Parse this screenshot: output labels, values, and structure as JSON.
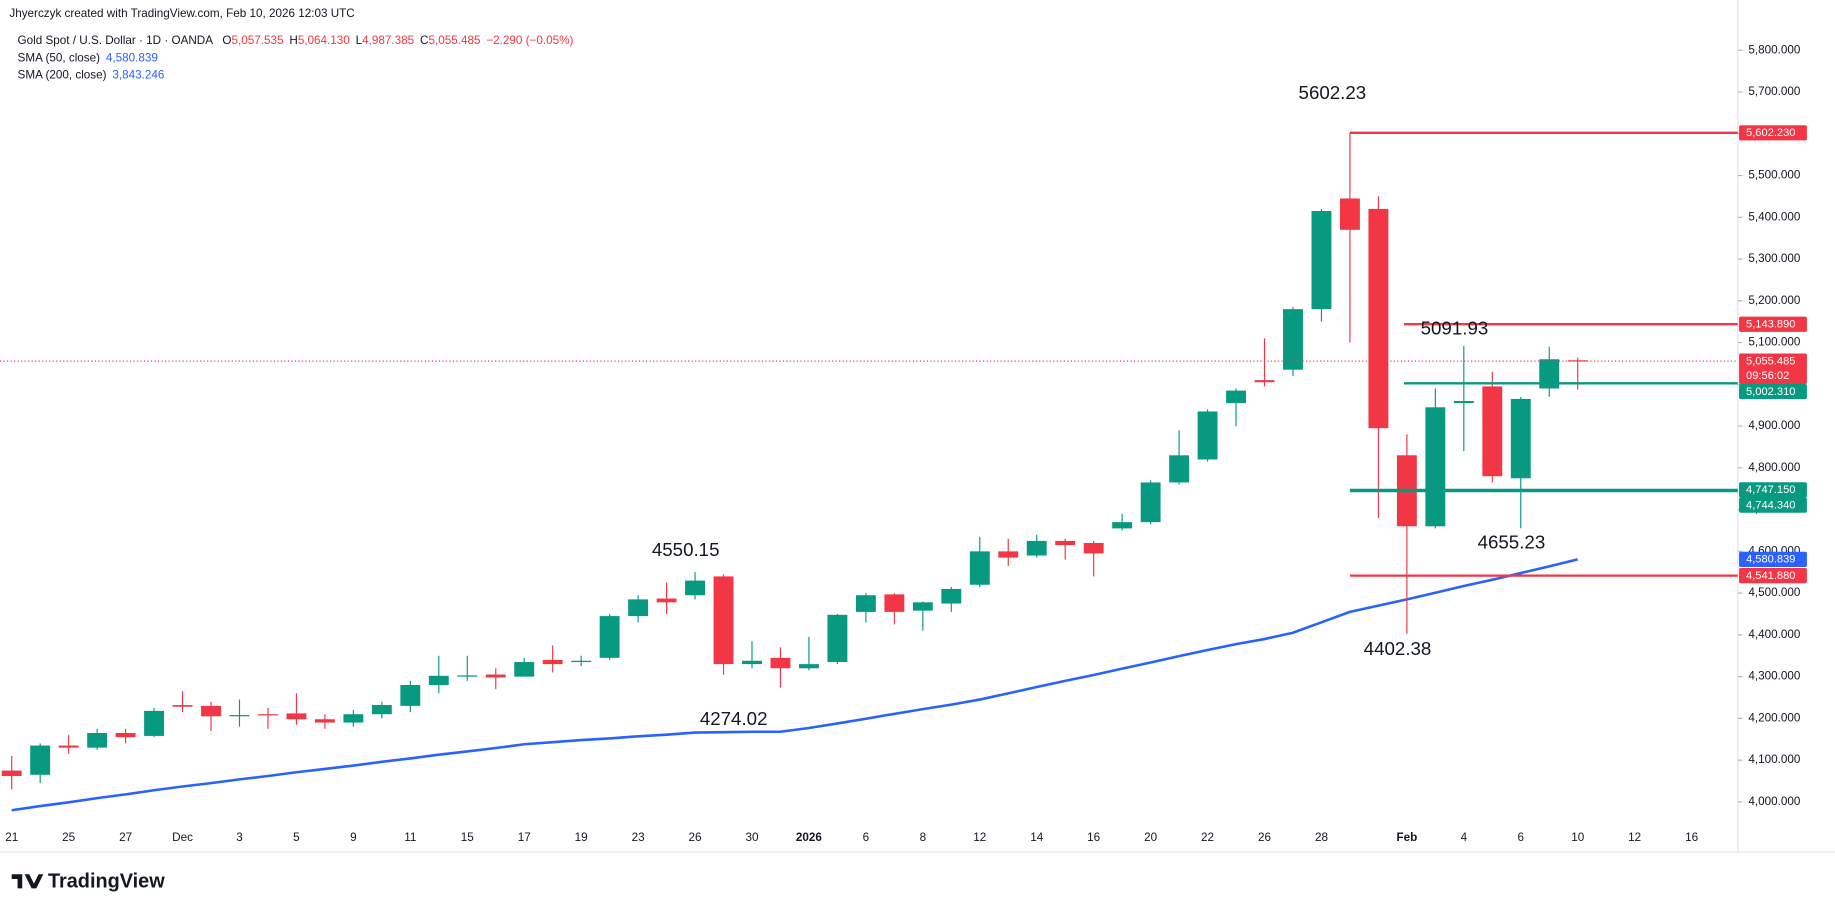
{
  "header": {
    "credit": "Jhyerczyk created with TradingView.com, Feb 10, 2026 12:03 UTC"
  },
  "chart_data": {
    "type": "candlestick",
    "symbol": "Gold Spot / U.S. Dollar · 1D · OANDA",
    "ohlc_legend": [
      {
        "key": "O",
        "text": "5,057.535"
      },
      {
        "key": "H",
        "text": "5,064.130"
      },
      {
        "key": "L",
        "text": "4,987.385"
      },
      {
        "key": "C",
        "text": "5,055.485"
      }
    ],
    "change": "−2.290 (−0.05%)",
    "indicators": [
      {
        "name": "SMA (50, close)",
        "text": "4,580.839"
      },
      {
        "name": "SMA (200, close)",
        "text": "3,843.246"
      }
    ],
    "categories": [
      "21",
      null,
      "25",
      null,
      "27",
      null,
      "Dec",
      null,
      "3",
      null,
      "5",
      null,
      "9",
      null,
      "11",
      null,
      "15",
      null,
      "17",
      null,
      "19",
      null,
      "23",
      null,
      "26",
      null,
      "30",
      null,
      "2026",
      null,
      "6",
      null,
      "8",
      null,
      "12",
      null,
      "14",
      null,
      "16",
      null,
      "20",
      null,
      "22",
      null,
      "26",
      null,
      "28",
      null,
      null,
      "Feb",
      null,
      "4",
      null,
      "6",
      null,
      "10",
      null,
      "12",
      null,
      "16"
    ],
    "open": [
      4075,
      4065,
      4135,
      4130,
      4165,
      4158,
      4232,
      4230,
      4205,
      4210,
      4212,
      4198,
      4190,
      4210,
      4230,
      4280,
      4300,
      4305,
      4300,
      4340,
      4335,
      4345,
      4445,
      4487,
      4495,
      4540,
      4330,
      4345,
      4320,
      4335,
      4455,
      4497,
      4458,
      4475,
      4520,
      4600,
      4590,
      4625,
      4620,
      4655,
      4670,
      4765,
      4820,
      4955,
      5010,
      5035,
      5180,
      5445,
      5420,
      4830,
      4660,
      4955,
      4995,
      4775,
      4990,
      5057.535,
      null,
      null,
      null,
      null
    ],
    "high": [
      4110,
      4140,
      4160,
      4175,
      4175,
      4225,
      4265,
      4240,
      4245,
      4225,
      4260,
      4210,
      4220,
      4240,
      4290,
      4350,
      4350,
      4320,
      4345,
      4375,
      4350,
      4450,
      4495,
      4525,
      4550.15,
      4545,
      4385,
      4370,
      4395,
      4450,
      4500,
      4500,
      4480,
      4515,
      4635,
      4630,
      4640,
      4630,
      4625,
      4690,
      4770,
      4890,
      4940,
      4990,
      5110,
      5185,
      5420,
      5602.23,
      5450,
      4880,
      4990,
      5091.93,
      5030,
      4970,
      5090,
      5064.13,
      null,
      null,
      null,
      null
    ],
    "low": [
      4030,
      4045,
      4115,
      4125,
      4140,
      4155,
      4215,
      4170,
      4180,
      4175,
      4185,
      4175,
      4180,
      4200,
      4215,
      4260,
      4290,
      4270,
      4300,
      4310,
      4325,
      4340,
      4430,
      4450,
      4485,
      4305,
      4320,
      4274.02,
      4315,
      4330,
      4430,
      4425,
      4410,
      4455,
      4515,
      4565,
      4585,
      4580,
      4540,
      4650,
      4665,
      4760,
      4815,
      4900,
      4995,
      5020,
      5150,
      5100,
      4680,
      4402.38,
      4655,
      4840,
      4765,
      4655.23,
      4970,
      4987.385,
      null,
      null,
      null,
      null
    ],
    "close": [
      4062,
      4135,
      4130,
      4165,
      4155,
      4218,
      4228,
      4205,
      4208,
      4207,
      4198,
      4190,
      4210,
      4232,
      4280,
      4302,
      4303,
      4298,
      4335,
      4330,
      4338,
      4445,
      4485,
      4478,
      4530,
      4330,
      4338,
      4320,
      4330,
      4448,
      4495,
      4455,
      4478,
      4510,
      4600,
      4585,
      4625,
      4615,
      4595,
      4670,
      4765,
      4830,
      4935,
      4985,
      5005,
      5180,
      5415,
      5370,
      4895,
      4660,
      4945,
      4960,
      4780,
      4965,
      5060,
      5055.485,
      null,
      null,
      null,
      null
    ],
    "series": [
      {
        "name": "SMA (50, close)",
        "color": "#2962ff",
        "values": [
          3980,
          3990,
          3999,
          4009,
          4018,
          4028,
          4037,
          4045,
          4054,
          4062,
          4071,
          4079,
          4087,
          4096,
          4104,
          4113,
          4121,
          4129,
          4138,
          4143,
          4148,
          4152,
          4157,
          4161,
          4166,
          4167,
          4168,
          4168,
          4177,
          4188,
          4199,
          4211,
          4222,
          4233,
          4245,
          4260,
          4275,
          4290,
          4304,
          4319,
          4334,
          4349,
          4364,
          4378,
          4390,
          4405,
          4430,
          4455,
          4470,
          4485,
          4501,
          4517,
          4532,
          4548,
          4564,
          4580.839,
          null,
          null,
          null,
          null
        ]
      }
    ],
    "up_color": "#089981",
    "down_color": "#f23645",
    "ylim": [
      3950,
      5850
    ],
    "yticks": [
      {
        "value": 4000,
        "label": "4,000.000"
      },
      {
        "value": 4100,
        "label": "4,100.000"
      },
      {
        "value": 4200,
        "label": "4,200.000"
      },
      {
        "value": 4300,
        "label": "4,300.000"
      },
      {
        "value": 4400,
        "label": "4,400.000"
      },
      {
        "value": 4500,
        "label": "4,500.000"
      },
      {
        "value": 4600,
        "label": "4,600.000"
      },
      {
        "value": 4700,
        "label": "4,700.000"
      },
      {
        "value": 4800,
        "label": "4,800.000"
      },
      {
        "value": 4900,
        "label": "4,900.000"
      },
      {
        "value": 5000,
        "label": "5,000.000"
      },
      {
        "value": 5100,
        "label": "5,100.000"
      },
      {
        "value": 5200,
        "label": "5,200.000"
      },
      {
        "value": 5300,
        "label": "5,300.000"
      },
      {
        "value": 5400,
        "label": "5,400.000"
      },
      {
        "value": 5500,
        "label": "5,500.000"
      },
      {
        "value": 5600,
        "label": "5,600.000"
      },
      {
        "value": 5700,
        "label": "5,700.000"
      },
      {
        "value": 5800,
        "label": "5,800.000"
      }
    ],
    "levels": [
      {
        "value": 5602.23,
        "label": "5,602.230",
        "color": "#f23645"
      },
      {
        "value": 5143.89,
        "label": "5,143.890",
        "color": "#f23645"
      },
      {
        "value": 5002.31,
        "label": "5,002.310",
        "color": "#089981"
      },
      {
        "value": 4747.15,
        "label": "4,747.150",
        "color": "#089981"
      },
      {
        "value": 4744.34,
        "label": "4,744.340",
        "color": "#089981"
      },
      {
        "value": 4541.88,
        "label": "4,541.880",
        "color": "#f23645"
      }
    ],
    "countdown": "09:56:02",
    "logo": "TradingView"
  }
}
